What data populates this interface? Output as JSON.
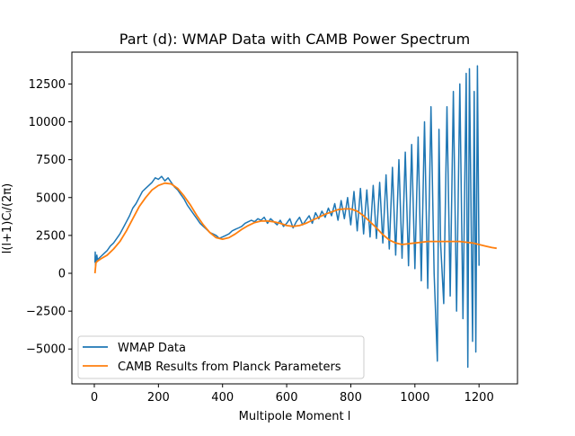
{
  "chart_data": {
    "type": "line",
    "title": "Part (d): WMAP Data with CAMB Power Spectrum",
    "xlabel": "Multipole Moment l",
    "ylabel": "l(l+1)Cₗ/(2π)",
    "xlim": [
      -70,
      1320
    ],
    "ylim": [
      -7300,
      14600
    ],
    "xticks": [
      0,
      200,
      400,
      600,
      800,
      1000,
      1200
    ],
    "yticks": [
      -5000,
      -2500,
      0,
      2500,
      5000,
      7500,
      10000,
      12500
    ],
    "grid": false,
    "legend_position": "lower-left",
    "series": [
      {
        "name": "WMAP Data",
        "color": "#1f77b4",
        "note_points": "noisy measured spectrum",
        "x": [
          2,
          3,
          4,
          5,
          6,
          8,
          10,
          15,
          20,
          30,
          40,
          50,
          60,
          70,
          80,
          90,
          100,
          110,
          120,
          130,
          140,
          150,
          160,
          170,
          180,
          190,
          200,
          210,
          220,
          230,
          240,
          250,
          260,
          270,
          280,
          290,
          300,
          310,
          320,
          330,
          340,
          350,
          360,
          370,
          380,
          390,
          400,
          410,
          420,
          430,
          440,
          450,
          460,
          470,
          480,
          490,
          500,
          510,
          520,
          530,
          540,
          550,
          560,
          570,
          580,
          590,
          600,
          610,
          620,
          630,
          640,
          650,
          660,
          670,
          680,
          690,
          700,
          710,
          720,
          730,
          740,
          750,
          760,
          770,
          780,
          790,
          800,
          810,
          820,
          830,
          840,
          850,
          860,
          870,
          880,
          890,
          900,
          910,
          920,
          930,
          940,
          950,
          960,
          970,
          980,
          990,
          1000,
          1010,
          1020,
          1030,
          1040,
          1050,
          1060,
          1070,
          1075,
          1080,
          1090,
          1100,
          1110,
          1120,
          1130,
          1140,
          1150,
          1160,
          1165,
          1170,
          1180,
          1185,
          1190,
          1195,
          1200
        ],
        "y": [
          700,
          1400,
          500,
          1100,
          800,
          1200,
          900,
          1000,
          1100,
          1300,
          1500,
          1800,
          2000,
          2300,
          2600,
          3000,
          3400,
          3800,
          4300,
          4600,
          5000,
          5400,
          5600,
          5800,
          6000,
          6300,
          6200,
          6400,
          6100,
          6300,
          6000,
          5700,
          5500,
          5200,
          4900,
          4500,
          4200,
          3900,
          3600,
          3300,
          3100,
          2900,
          2700,
          2600,
          2500,
          2300,
          2400,
          2500,
          2600,
          2800,
          2900,
          3000,
          3100,
          3300,
          3400,
          3500,
          3400,
          3600,
          3500,
          3700,
          3300,
          3600,
          3400,
          3200,
          3500,
          3100,
          3300,
          3600,
          3000,
          3400,
          3700,
          3200,
          3500,
          3800,
          3300,
          4000,
          3600,
          4100,
          3700,
          4300,
          3800,
          4600,
          3500,
          4800,
          3600,
          5000,
          3200,
          5400,
          2800,
          5600,
          2600,
          5500,
          2400,
          5800,
          2300,
          6000,
          2000,
          6500,
          1600,
          7000,
          1200,
          7500,
          1000,
          8000,
          500,
          8500,
          300,
          9000,
          -500,
          10000,
          -1000,
          11000,
          0,
          -5800,
          9500,
          2000,
          -2000,
          11000,
          -1500,
          12000,
          -2500,
          12500,
          -3000,
          13200,
          -6200,
          13500,
          -4500,
          12000,
          -5200,
          13700,
          500
        ]
      },
      {
        "name": "CAMB Results from Planck Parameters",
        "color": "#ff7f0e",
        "x": [
          2,
          5,
          10,
          20,
          40,
          60,
          80,
          100,
          120,
          140,
          160,
          180,
          200,
          220,
          240,
          260,
          280,
          300,
          320,
          340,
          360,
          380,
          400,
          420,
          440,
          460,
          480,
          500,
          520,
          540,
          560,
          580,
          600,
          620,
          640,
          660,
          680,
          700,
          720,
          740,
          760,
          780,
          800,
          820,
          840,
          860,
          880,
          900,
          920,
          940,
          960,
          980,
          1000,
          1020,
          1040,
          1060,
          1080,
          1100,
          1120,
          1140,
          1160,
          1180,
          1200,
          1220,
          1240,
          1255
        ],
        "y": [
          0,
          700,
          800,
          950,
          1200,
          1600,
          2100,
          2800,
          3600,
          4400,
          5000,
          5500,
          5800,
          5950,
          5900,
          5600,
          5100,
          4500,
          3800,
          3200,
          2700,
          2350,
          2250,
          2350,
          2600,
          2900,
          3150,
          3350,
          3450,
          3450,
          3400,
          3300,
          3150,
          3100,
          3150,
          3300,
          3500,
          3700,
          3900,
          4050,
          4200,
          4250,
          4250,
          4100,
          3800,
          3400,
          3000,
          2550,
          2200,
          2000,
          1900,
          1950,
          2000,
          2050,
          2100,
          2100,
          2100,
          2100,
          2100,
          2100,
          2050,
          2000,
          1900,
          1800,
          1700,
          1650
        ]
      }
    ]
  }
}
